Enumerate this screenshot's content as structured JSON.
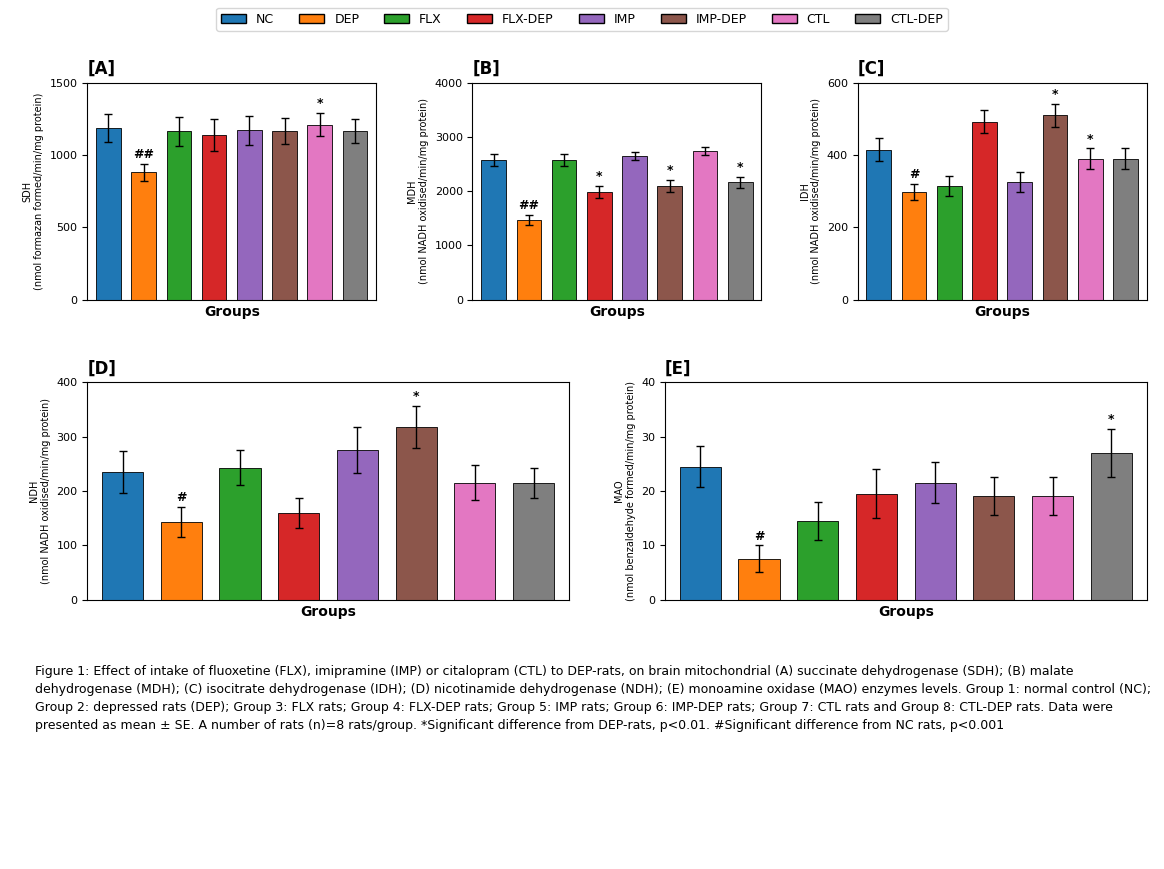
{
  "chart_data": [
    {
      "type": "bar",
      "title": "[A]",
      "x_label": "Groups",
      "y_label": "SDH\n(nmol formazan formed/min/mg protein)",
      "categories": [
        "NC",
        "DEP",
        "FLX",
        "FLX-DEP",
        "IMP",
        "IMP-DEP",
        "CTL",
        "CTL-DEP"
      ],
      "values": [
        1185,
        880,
        1165,
        1140,
        1170,
        1165,
        1210,
        1165
      ],
      "errors": [
        95,
        60,
        100,
        110,
        100,
        90,
        80,
        80
      ],
      "colors": [
        "#1f77b4",
        "#ff7f0e",
        "#2ca02c",
        "#d62728",
        "#9467bd",
        "#8c564b",
        "#e377c2",
        "#7f7f7f"
      ],
      "ylim": [
        0,
        1500
      ],
      "yticks": [
        0,
        500,
        1000,
        1500
      ],
      "annotations": [
        {
          "category": "DEP",
          "text": "##"
        },
        {
          "category": "CTL",
          "text": "*"
        }
      ],
      "tick_labels": "y"
    },
    {
      "type": "bar",
      "title": "[B]",
      "x_label": "Groups",
      "y_label": "MDH\n(nmol NADH oxidised/min/mg protein)",
      "categories": [
        "NC",
        "DEP",
        "FLX",
        "FLX-DEP",
        "IMP",
        "IMP-DEP",
        "CTL",
        "CTL-DEP"
      ],
      "values": [
        2580,
        1470,
        2580,
        1990,
        2650,
        2100,
        2740,
        2160
      ],
      "errors": [
        110,
        90,
        110,
        110,
        80,
        110,
        80,
        110
      ],
      "colors": [
        "#1f77b4",
        "#ff7f0e",
        "#2ca02c",
        "#d62728",
        "#9467bd",
        "#8c564b",
        "#e377c2",
        "#7f7f7f"
      ],
      "ylim": [
        0,
        4000
      ],
      "yticks": [
        0,
        1000,
        2000,
        3000,
        4000
      ],
      "annotations": [
        {
          "category": "DEP",
          "text": "##"
        },
        {
          "category": "FLX-DEP",
          "text": "*"
        },
        {
          "category": "IMP-DEP",
          "text": "*"
        },
        {
          "category": "CTL-DEP",
          "text": "*"
        }
      ],
      "tick_labels": "y"
    },
    {
      "type": "bar",
      "title": "[C]",
      "x_label": "Groups",
      "y_label": "IDH\n(nmol NADH oxidised/min/mg protein)",
      "categories": [
        "NC",
        "DEP",
        "FLX",
        "FLX-DEP",
        "IMP",
        "IMP-DEP",
        "CTL",
        "CTL-DEP"
      ],
      "values": [
        415,
        298,
        315,
        492,
        325,
        510,
        390,
        390
      ],
      "errors": [
        32,
        22,
        28,
        32,
        28,
        32,
        28,
        28
      ],
      "colors": [
        "#1f77b4",
        "#ff7f0e",
        "#2ca02c",
        "#d62728",
        "#9467bd",
        "#8c564b",
        "#e377c2",
        "#7f7f7f"
      ],
      "ylim": [
        0,
        600
      ],
      "yticks": [
        0,
        200,
        400,
        600
      ],
      "annotations": [
        {
          "category": "DEP",
          "text": "#"
        },
        {
          "category": "IMP-DEP",
          "text": "*"
        },
        {
          "category": "CTL",
          "text": "*"
        }
      ],
      "tick_labels": "y"
    },
    {
      "type": "bar",
      "title": "[D]",
      "x_label": "Groups",
      "y_label": "NDH\n(nmol NADH oxidised/min/mg protein)",
      "categories": [
        "NC",
        "DEP",
        "FLX",
        "FLX-DEP",
        "IMP",
        "IMP-DEP",
        "CTL",
        "CTL-DEP"
      ],
      "values": [
        235,
        143,
        243,
        160,
        275,
        318,
        215,
        215
      ],
      "errors": [
        38,
        28,
        32,
        28,
        42,
        38,
        32,
        28
      ],
      "colors": [
        "#1f77b4",
        "#ff7f0e",
        "#2ca02c",
        "#d62728",
        "#9467bd",
        "#8c564b",
        "#e377c2",
        "#7f7f7f"
      ],
      "ylim": [
        0,
        400
      ],
      "yticks": [
        0,
        100,
        200,
        300,
        400
      ],
      "annotations": [
        {
          "category": "DEP",
          "text": "#"
        },
        {
          "category": "IMP-DEP",
          "text": "*"
        }
      ],
      "tick_labels": "y"
    },
    {
      "type": "bar",
      "title": "[E]",
      "x_label": "Groups",
      "y_label": "MAO\n(nmol benzaldehyde formed/min/mg protein)",
      "categories": [
        "NC",
        "DEP",
        "FLX",
        "FLX-DEP",
        "IMP",
        "IMP-DEP",
        "CTL",
        "CTL-DEP"
      ],
      "values": [
        24.5,
        7.5,
        14.5,
        19.5,
        21.5,
        19.0,
        19.0,
        27.0
      ],
      "errors": [
        3.8,
        2.5,
        3.5,
        4.5,
        3.8,
        3.5,
        3.5,
        4.5
      ],
      "colors": [
        "#1f77b4",
        "#ff7f0e",
        "#2ca02c",
        "#d62728",
        "#9467bd",
        "#8c564b",
        "#e377c2",
        "#7f7f7f"
      ],
      "ylim": [
        0,
        40
      ],
      "yticks": [
        0,
        10,
        20,
        30,
        40
      ],
      "annotations": [
        {
          "category": "DEP",
          "text": "#"
        },
        {
          "category": "CTL-DEP",
          "text": "*"
        }
      ],
      "tick_labels": "y"
    }
  ],
  "legend": "upper center",
  "caption": "Figure 1: Effect of intake of fluoxetine (FLX), imipramine (IMP) or citalopram (CTL) to DEP-rats, on brain mitochondrial (A) succinate dehydrogenase (SDH); (B) malate dehydrogenase (MDH); (C) isocitrate dehydrogenase (IDH); (D) nicotinamide dehydrogenase (NDH); (E) monoamine oxidase (MAO) enzymes levels. Group 1: normal control (NC); Group 2: depressed rats (DEP); Group 3: FLX rats; Group 4: FLX-DEP rats; Group 5: IMP rats; Group 6: IMP-DEP rats; Group 7: CTL rats and Group 8: CTL-DEP rats. Data were presented as mean ± SE. A number of rats (n)=8 rats/group. *Significant difference from DEP-rats, p<0.01. #Significant difference from NC rats, p<0.001"
}
